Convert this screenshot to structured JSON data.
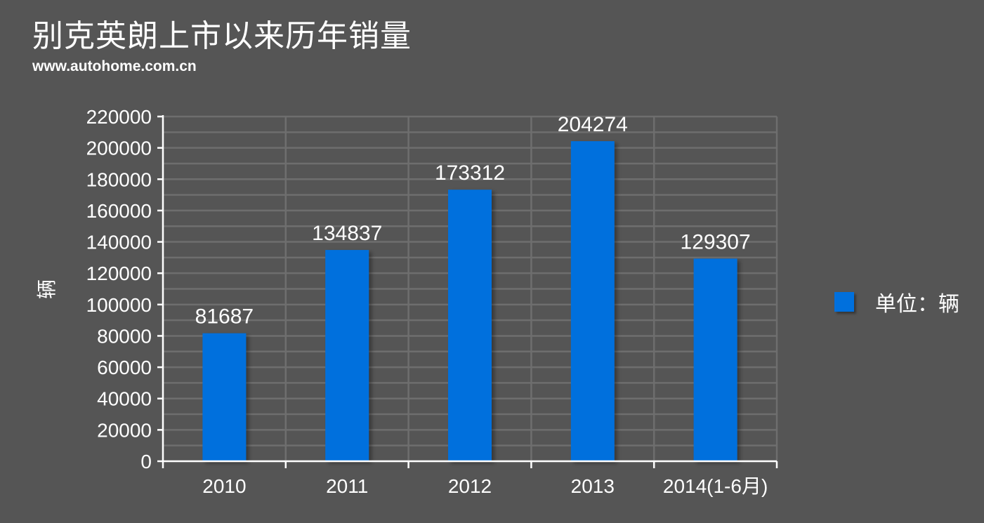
{
  "title": "别克英朗上市以来历年销量",
  "subtitle": "www.autohome.com.cn",
  "colors": {
    "background": "#555555",
    "bar": "#0070dd",
    "grid": "#6e6e6e",
    "axis": "#ffffff",
    "text": "#ffffff"
  },
  "chart_data": {
    "type": "bar",
    "title": "别克英朗上市以来历年销量",
    "subtitle": "www.autohome.com.cn",
    "categories": [
      "2010",
      "2011",
      "2012",
      "2013",
      "2014(1-6月)"
    ],
    "series": [
      {
        "name": "单位：辆",
        "values": [
          81687,
          134837,
          173312,
          204274,
          129307
        ]
      }
    ],
    "ylabel": "辆",
    "xlabel": "",
    "ylim": [
      0,
      220000
    ],
    "yticks": [
      0,
      20000,
      40000,
      60000,
      80000,
      100000,
      120000,
      140000,
      160000,
      180000,
      200000,
      220000
    ],
    "grid": true,
    "data_labels": true,
    "legend_position": "right"
  },
  "legend": {
    "label": "单位：辆"
  }
}
